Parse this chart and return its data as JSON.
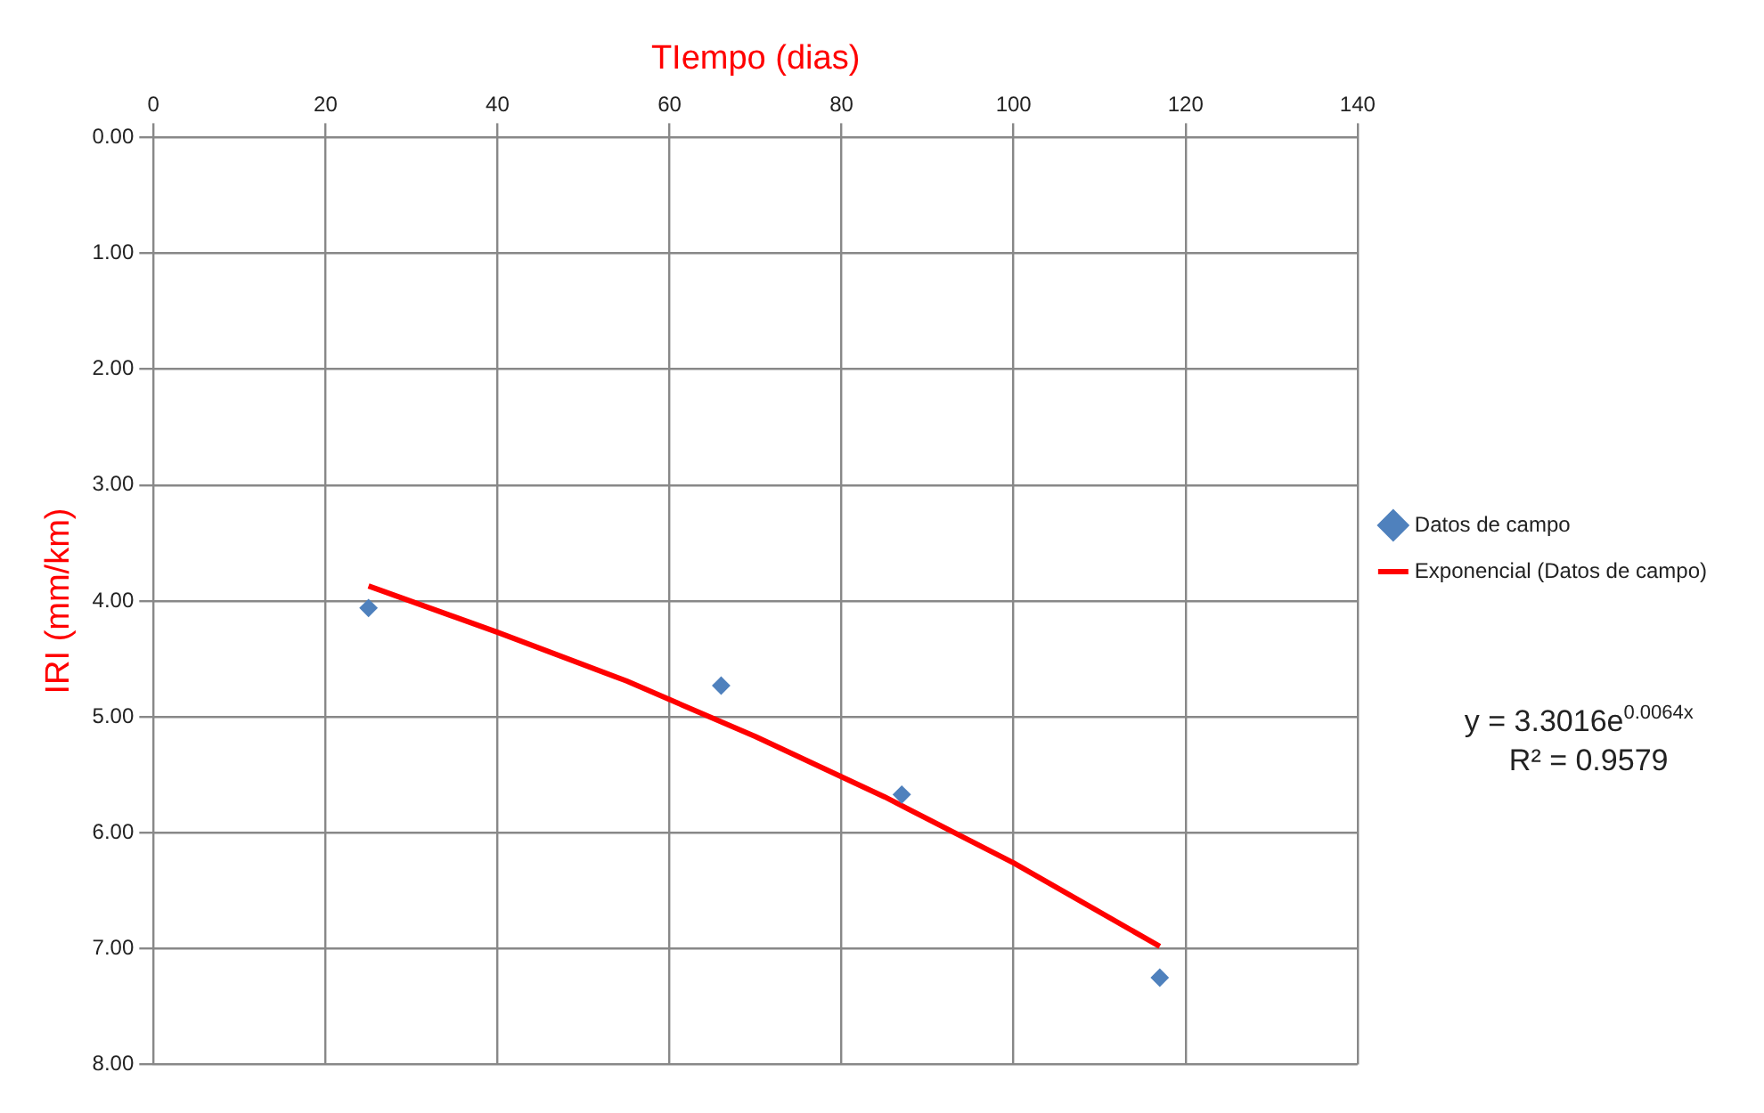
{
  "chart_data": {
    "type": "scatter",
    "xlabel": "TIempo (dias)",
    "ylabel": "IRI (mm/km)",
    "xlim": [
      0,
      140
    ],
    "xticks": [
      0,
      20,
      40,
      60,
      80,
      100,
      120,
      140
    ],
    "ylim": [
      8,
      0
    ],
    "yticks": [
      {
        "value": 0,
        "label": "0.00"
      },
      {
        "value": 1,
        "label": "1.00"
      },
      {
        "value": 2,
        "label": "2.00"
      },
      {
        "value": 3,
        "label": "3.00"
      },
      {
        "value": 4,
        "label": "4.00"
      },
      {
        "value": 5,
        "label": "5.00"
      },
      {
        "value": 6,
        "label": "6.00"
      },
      {
        "value": 7,
        "label": "7.00"
      },
      {
        "value": 8,
        "label": "8.00"
      }
    ],
    "grid": true,
    "legend": "right",
    "series": [
      {
        "name": "Datos de campo",
        "type": "scatter",
        "marker": "diamond",
        "color": "#4f81bd",
        "x": [
          25,
          66,
          87,
          117
        ],
        "values": [
          4.06,
          4.73,
          5.67,
          7.25
        ]
      },
      {
        "name": "Exponencial (Datos de campo)",
        "type": "line",
        "marker": "none",
        "color": "#ff0000",
        "x": [
          25,
          40,
          55,
          70,
          85,
          100,
          117
        ],
        "values": [
          3.87,
          4.27,
          4.69,
          5.17,
          5.69,
          6.26,
          6.98
        ]
      }
    ],
    "annotations": [
      "y = 3.3016e$^{0.0064x}$",
      "R² = 0.9579"
    ]
  }
}
